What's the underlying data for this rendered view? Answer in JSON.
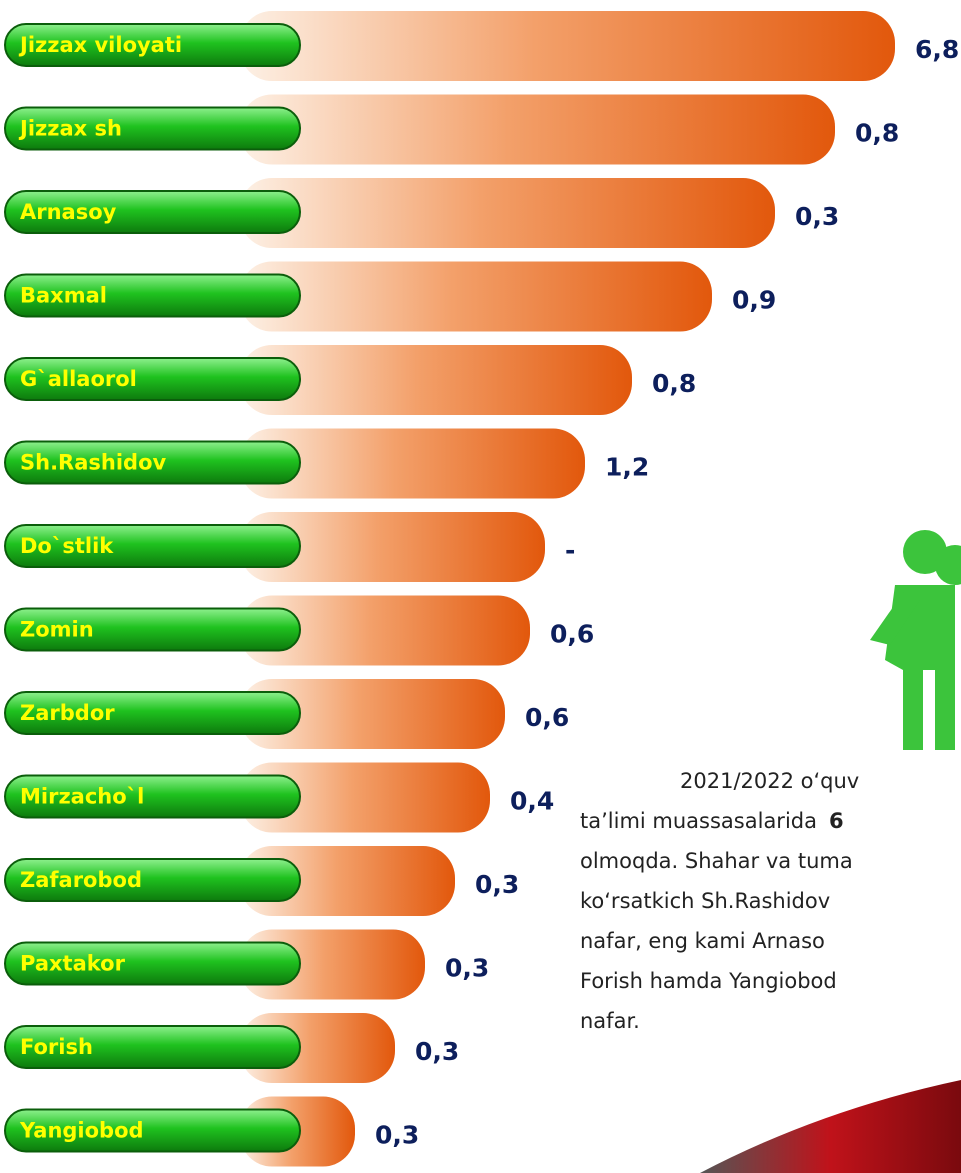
{
  "rows": [
    {
      "label": "Jizzax viloyati",
      "value": "6,8"
    },
    {
      "label": "Jizzax sh",
      "value": "0,8"
    },
    {
      "label": "Arnasoy",
      "value": "0,3"
    },
    {
      "label": "Baxmal",
      "value": "0,9"
    },
    {
      "label": "G`allaorol",
      "value": "0,8"
    },
    {
      "label": "Sh.Rashidov",
      "value": "1,2"
    },
    {
      "label": "Do`stlik",
      "value": "-"
    },
    {
      "label": "Zomin",
      "value": "0,6"
    },
    {
      "label": "Zarbdor",
      "value": "0,6"
    },
    {
      "label": "Mirzacho`l",
      "value": "0,4"
    },
    {
      "label": "Zafarobod",
      "value": "0,3"
    },
    {
      "label": "Paxtakor",
      "value": "0,3"
    },
    {
      "label": "Forish",
      "value": "0,3"
    },
    {
      "label": "Yangiobod",
      "value": "0,3"
    }
  ],
  "paragraph": {
    "lines": [
      "2021/2022 o‘quv",
      "ta’limi muassasalarida",
      "olmoqda. Shahar va tuma",
      "ko‘rsatkich Sh.Rashidov",
      "nafar, eng kami Arnaso",
      "Forish hamda Yangiobod",
      "nafar."
    ],
    "bold": "6"
  }
}
